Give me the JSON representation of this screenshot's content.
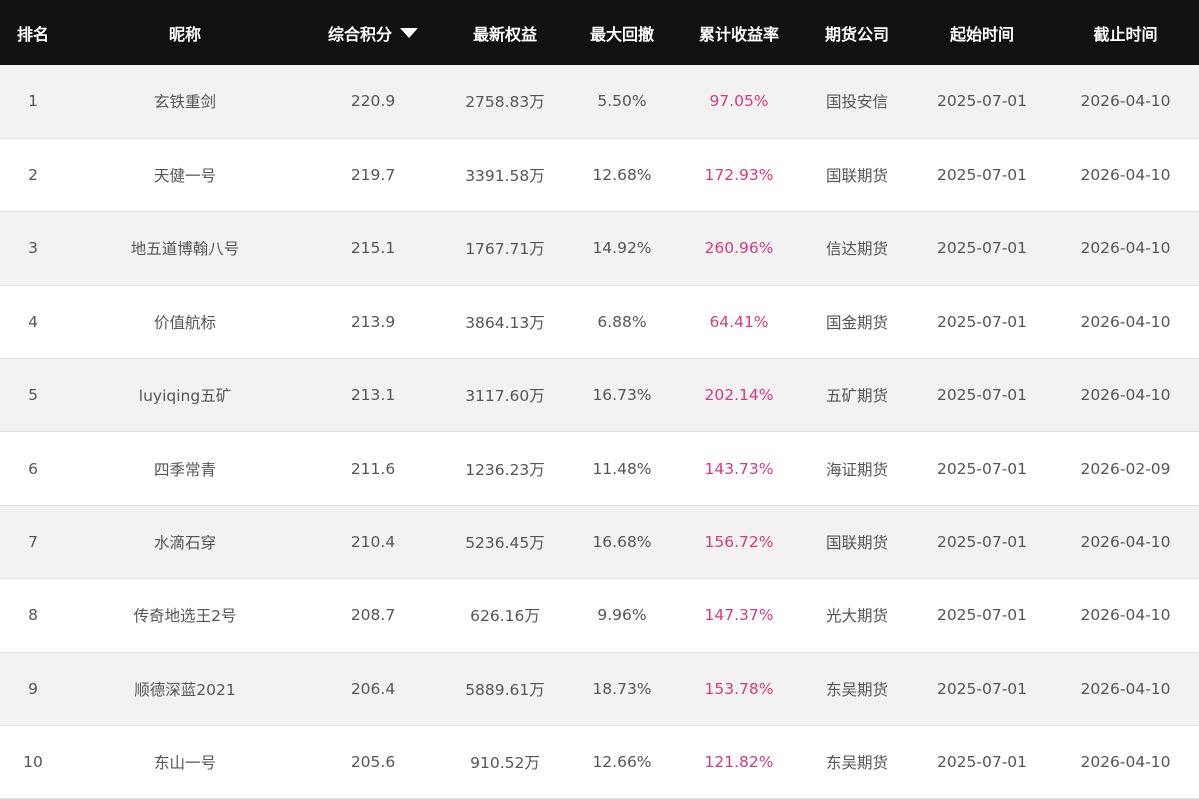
{
  "colors": {
    "header_bg": "#111111",
    "return_text": "#d83a7c",
    "odd_row_bg": "#f2f2f2"
  },
  "headers": [
    "排名",
    "昵称",
    "综合积分",
    "最新权益",
    "最大回撤",
    "累计收益率",
    "期货公司",
    "起始时间",
    "截止时间"
  ],
  "sort": {
    "column": "综合积分",
    "direction": "descending",
    "icon": "triangle-down-icon"
  },
  "rows": [
    [
      "1",
      "玄铁重剑",
      "220.9",
      "2758.83万",
      "5.50%",
      "97.05%",
      "国投安信",
      "2025-07-01",
      "2026-04-10"
    ],
    [
      "2",
      "天健一号",
      "219.7",
      "3391.58万",
      "12.68%",
      "172.93%",
      "国联期货",
      "2025-07-01",
      "2026-04-10"
    ],
    [
      "3",
      "地五道博翰八号",
      "215.1",
      "1767.71万",
      "14.92%",
      "260.96%",
      "信达期货",
      "2025-07-01",
      "2026-04-10"
    ],
    [
      "4",
      "价值航标",
      "213.9",
      "3864.13万",
      "6.88%",
      "64.41%",
      "国金期货",
      "2025-07-01",
      "2026-04-10"
    ],
    [
      "5",
      "luyiqing五矿",
      "213.1",
      "3117.60万",
      "16.73%",
      "202.14%",
      "五矿期货",
      "2025-07-01",
      "2026-04-10"
    ],
    [
      "6",
      "四季常青",
      "211.6",
      "1236.23万",
      "11.48%",
      "143.73%",
      "海证期货",
      "2025-07-01",
      "2026-02-09"
    ],
    [
      "7",
      "水滴石穿",
      "210.4",
      "5236.45万",
      "16.68%",
      "156.72%",
      "国联期货",
      "2025-07-01",
      "2026-04-10"
    ],
    [
      "8",
      "传奇地选王2号",
      "208.7",
      "626.16万",
      "9.96%",
      "147.37%",
      "光大期货",
      "2025-07-01",
      "2026-04-10"
    ],
    [
      "9",
      "顺德深蓝2021",
      "206.4",
      "5889.61万",
      "18.73%",
      "153.78%",
      "东吴期货",
      "2025-07-01",
      "2026-04-10"
    ],
    [
      "10",
      "东山一号",
      "205.6",
      "910.52万",
      "12.66%",
      "121.82%",
      "东吴期货",
      "2025-07-01",
      "2026-04-10"
    ]
  ]
}
